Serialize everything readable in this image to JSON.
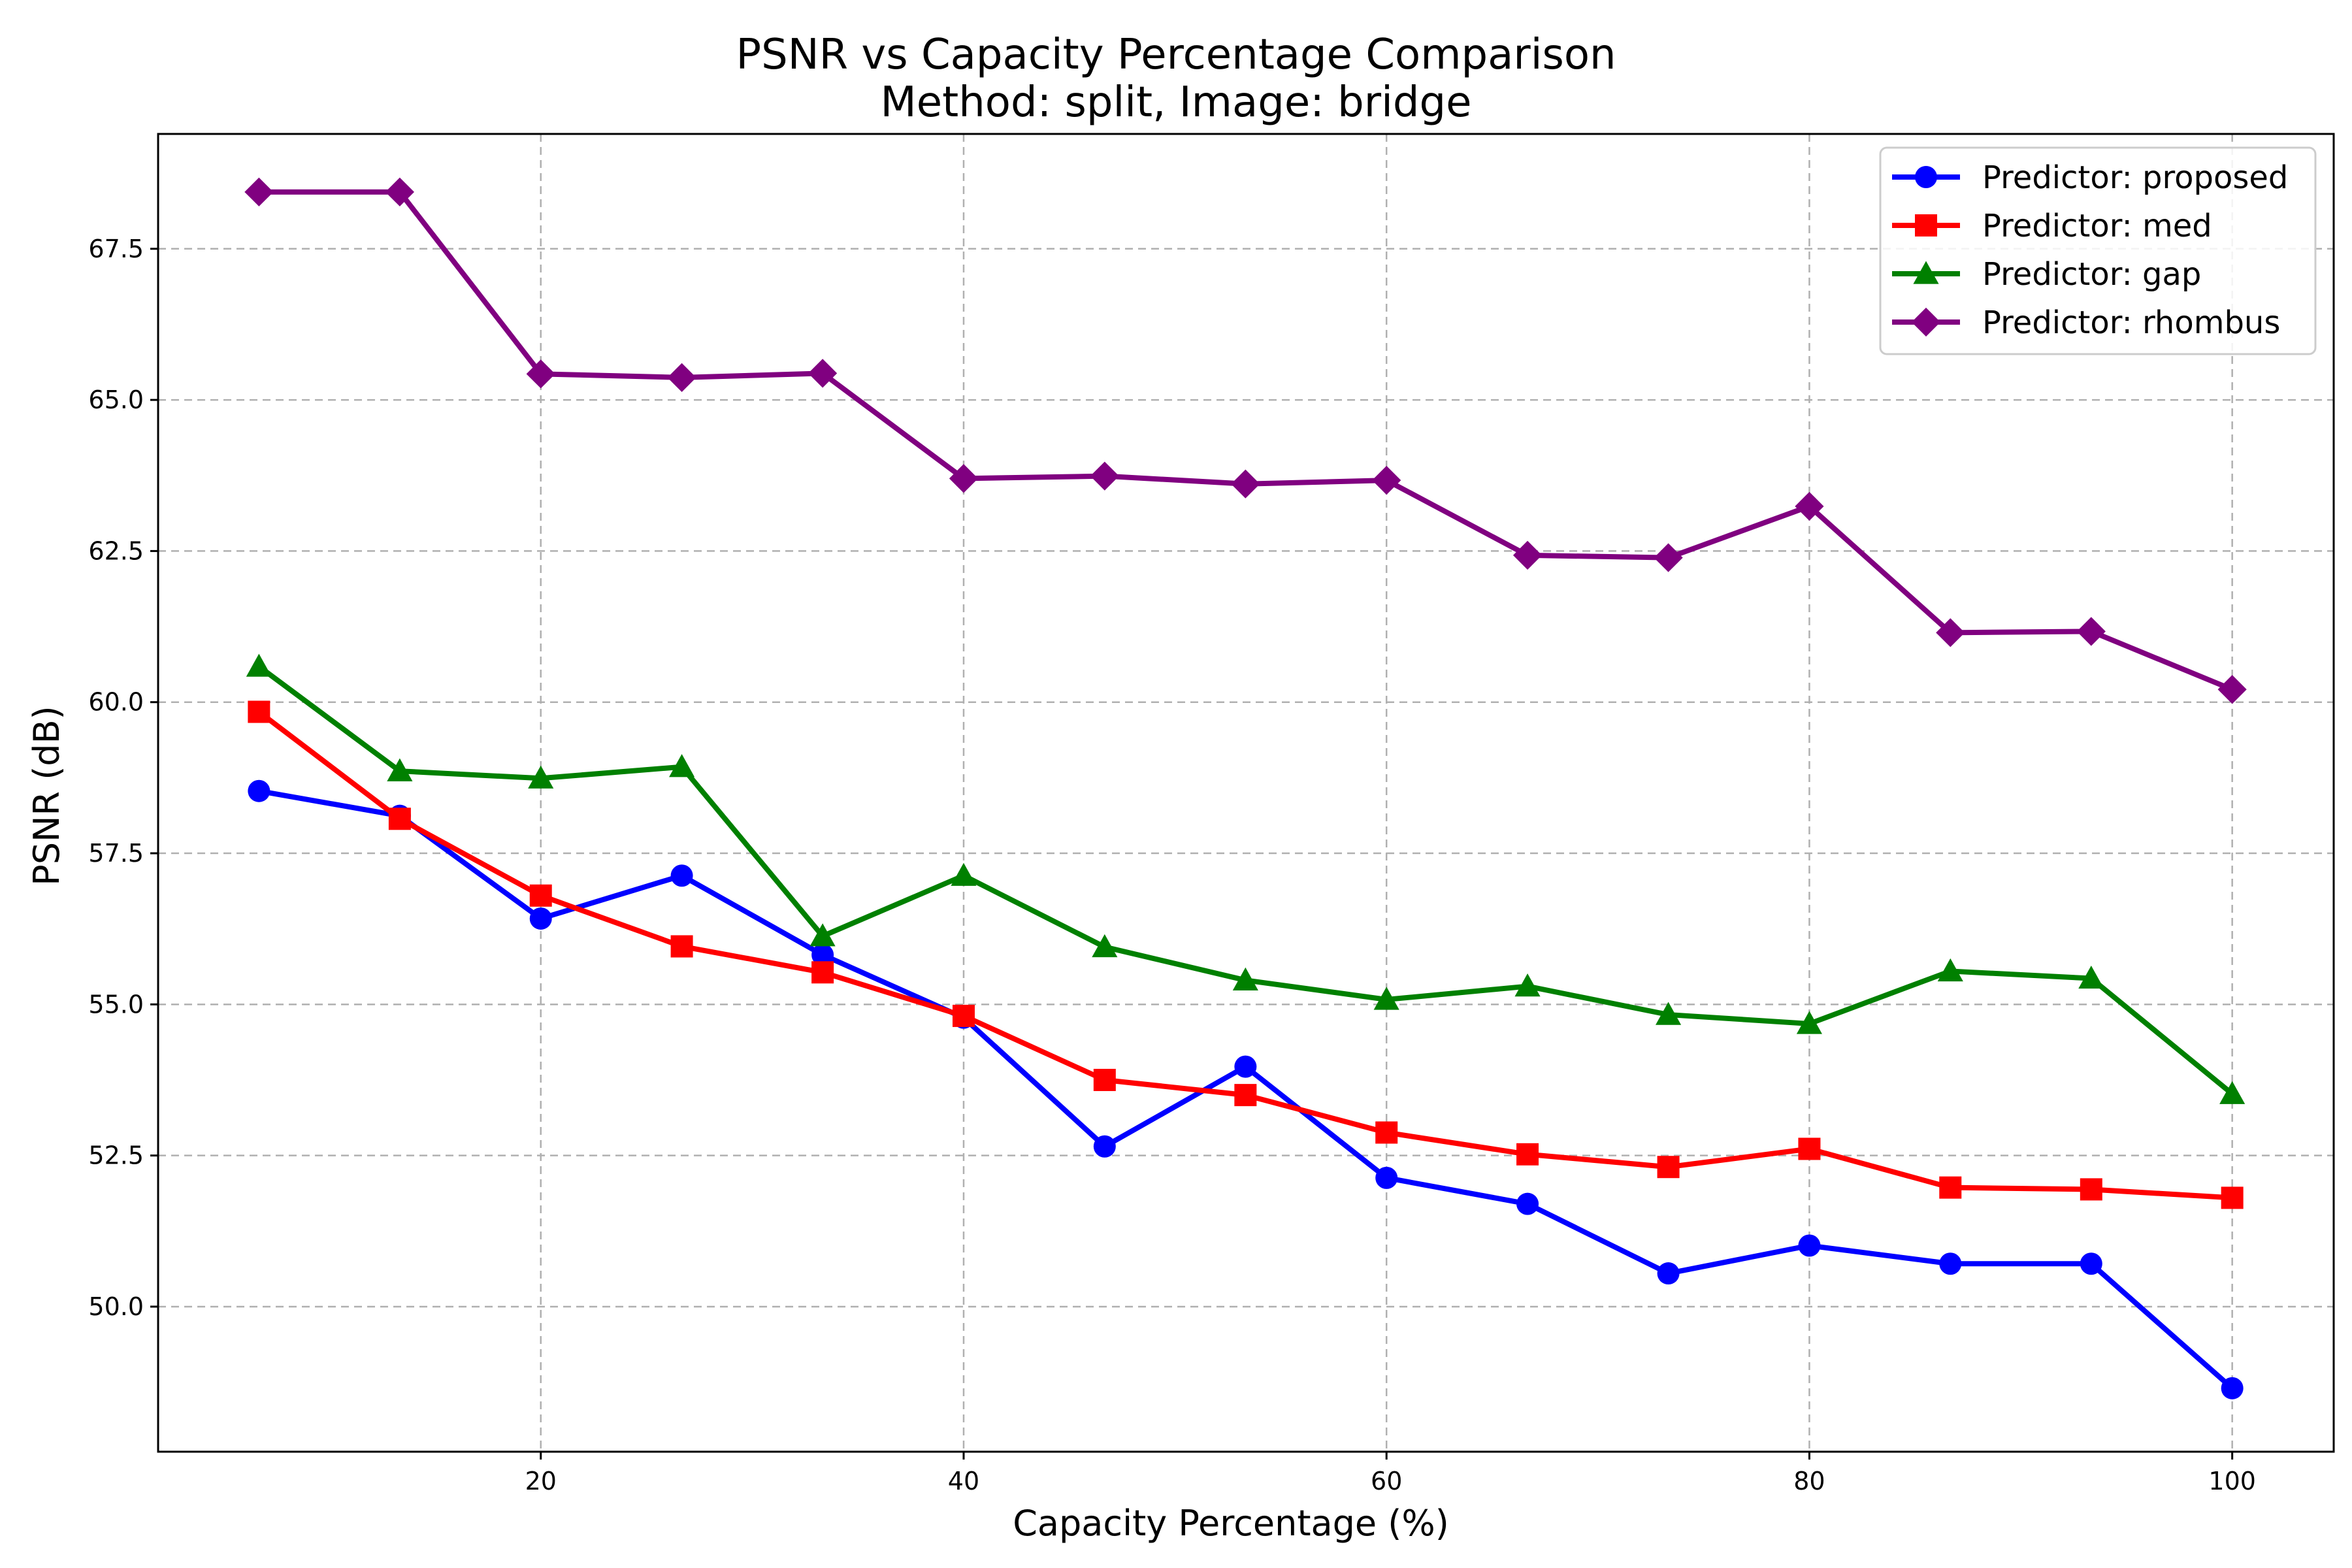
{
  "chart_data": {
    "type": "line",
    "title": "PSNR vs Capacity Percentage Comparison",
    "subtitle": "Method: split, Image: bridge",
    "xlabel": "Capacity Percentage (%)",
    "ylabel": "PSNR (dB)",
    "xlim": [
      1.9,
      104.8
    ],
    "ylim": [
      47.6,
      69.4
    ],
    "x_ticks": [
      20,
      40,
      60,
      80,
      100
    ],
    "x_tick_labels": [
      "20",
      "40",
      "60",
      "80",
      "100"
    ],
    "y_ticks": [
      50.0,
      52.5,
      55.0,
      57.5,
      60.0,
      62.5,
      65.0,
      67.5
    ],
    "y_tick_labels": [
      "50.0",
      "52.5",
      "55.0",
      "57.5",
      "60.0",
      "62.5",
      "65.0",
      "67.5"
    ],
    "grid": true,
    "legend_position": "top-right",
    "x": [
      6.67,
      13.33,
      20.0,
      26.67,
      33.33,
      40.0,
      46.67,
      53.33,
      60.0,
      66.67,
      73.33,
      80.0,
      86.67,
      93.33,
      100.0
    ],
    "series": [
      {
        "name": "Predictor: proposed",
        "color": "#0000ff",
        "marker": "circle",
        "values": [
          58.53,
          58.12,
          56.42,
          57.13,
          55.82,
          54.78,
          52.65,
          53.97,
          52.13,
          51.7,
          50.55,
          51.01,
          50.71,
          50.71,
          48.65
        ]
      },
      {
        "name": "Predictor: med",
        "color": "#ff0000",
        "marker": "square",
        "values": [
          59.84,
          58.07,
          56.8,
          55.96,
          55.53,
          54.81,
          53.75,
          53.5,
          52.88,
          52.52,
          52.31,
          52.61,
          51.97,
          51.94,
          51.8
        ]
      },
      {
        "name": "Predictor: gap",
        "color": "#008000",
        "marker": "triangle",
        "values": [
          60.59,
          58.86,
          58.74,
          58.93,
          56.13,
          57.13,
          55.95,
          55.4,
          55.08,
          55.3,
          54.83,
          54.68,
          55.55,
          55.43,
          53.52
        ]
      },
      {
        "name": "Predictor: rhombus",
        "color": "#800080",
        "marker": "diamond",
        "values": [
          68.44,
          68.44,
          65.43,
          65.37,
          65.44,
          63.7,
          63.74,
          63.61,
          63.67,
          62.43,
          62.39,
          63.24,
          61.15,
          61.17,
          60.21
        ]
      }
    ]
  }
}
